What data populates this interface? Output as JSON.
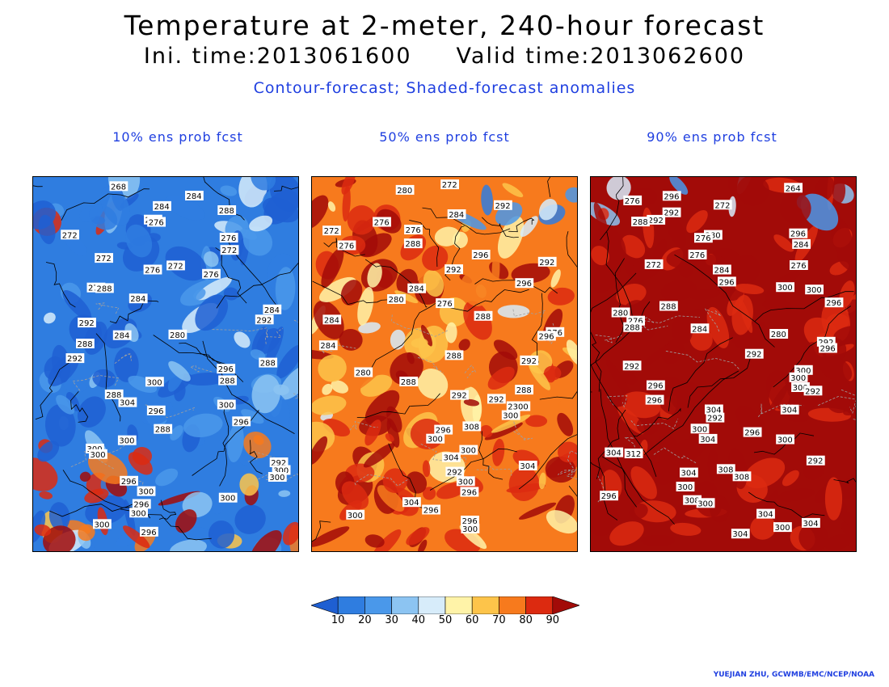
{
  "title": "Temperature at 2-meter, 240-hour forecast",
  "init_label": "Ini. time:2013061600",
  "valid_label": "Valid time:2013062600",
  "subtitle": "Contour-forecast; Shaded-forecast anomalies",
  "credit": "YUEJIAN ZHU, GCWMB/EMC/NCEP/NOAA",
  "colors": {
    "bins": [
      "#1e5fd2",
      "#2f7de0",
      "#4a98ea",
      "#8cc4f2",
      "#d7ecfa",
      "#fff3a8",
      "#fdc44a",
      "#f77a1d",
      "#dc2a10",
      "#a20b08"
    ],
    "contour": "#000000",
    "border": "#a0a0a0",
    "text_accent": "#1f3fe0"
  },
  "colorbar": {
    "labels": [
      "10",
      "20",
      "30",
      "40",
      "50",
      "60",
      "70",
      "80",
      "90"
    ]
  },
  "panels": [
    {
      "title": "10% ens prob fcst",
      "dominant_bin": 1,
      "contour_labels": [
        "268",
        "284",
        "284",
        "288",
        "288",
        "276",
        "272",
        "276",
        "272",
        "272",
        "272",
        "276",
        "276",
        "276",
        "288",
        "284",
        "284",
        "292",
        "292",
        "280",
        "284",
        "288",
        "292",
        "288",
        "296",
        "288",
        "300",
        "288",
        "304",
        "300",
        "296",
        "296",
        "288",
        "300",
        "300",
        "300",
        "292",
        "300",
        "300",
        "296",
        "300",
        "300",
        "296",
        "300",
        "300",
        "296"
      ]
    },
    {
      "title": "50% ens prob fcst",
      "dominant_bin": 7,
      "contour_labels": [
        "272",
        "280",
        "292",
        "284",
        "276",
        "272",
        "276",
        "288",
        "276",
        "296",
        "292",
        "292",
        "296",
        "284",
        "280",
        "276",
        "288",
        "284",
        "276",
        "296",
        "284",
        "288",
        "292",
        "280",
        "288",
        "288",
        "292",
        "292",
        "2300",
        "300",
        "308",
        "296",
        "300",
        "300",
        "304",
        "304",
        "292",
        "300",
        "296",
        "304",
        "296",
        "300",
        "296",
        "300"
      ]
    },
    {
      "title": "90% ens prob fcst",
      "dominant_bin": 9,
      "contour_labels": [
        "264",
        "296",
        "276",
        "272",
        "292",
        "292",
        "288",
        "296",
        "280",
        "276",
        "284",
        "276",
        "272",
        "276",
        "284",
        "296",
        "300",
        "300",
        "296",
        "288",
        "280",
        "276",
        "288",
        "284",
        "280",
        "292",
        "296",
        "292",
        "292",
        "300",
        "300",
        "296",
        "300",
        "292",
        "296",
        "304",
        "304",
        "292",
        "300",
        "296",
        "300",
        "304",
        "304",
        "312",
        "292",
        "308",
        "304",
        "308",
        "300",
        "296",
        "308",
        "300",
        "304",
        "304",
        "300",
        "304"
      ]
    }
  ]
}
